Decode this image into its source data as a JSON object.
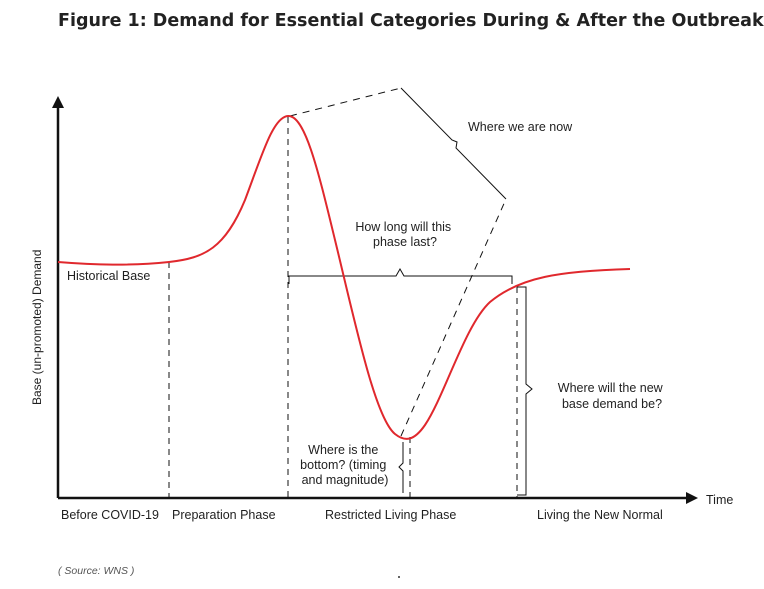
{
  "title": "Figure 1: Demand for Essential Categories During & After the Outbreak",
  "axes": {
    "y_label": "Base (un-promoted) Demand",
    "x_label": "Time"
  },
  "phases": [
    "Before COVID-19",
    "Preparation Phase",
    "Restricted Living Phase",
    "Living the New Normal"
  ],
  "annotations": {
    "historical_base": "Historical Base",
    "where_now": "Where we are now",
    "how_long": [
      "How long will this",
      "phase last?"
    ],
    "bottom": [
      "Where is the",
      "bottom? (timing",
      "and magnitude)"
    ],
    "new_base": [
      "Where will the new",
      "base demand be?"
    ]
  },
  "colors": {
    "curve": "#e0282d",
    "axes": "#111111",
    "guides": "#111111"
  },
  "source": "( Source: WNS )"
}
